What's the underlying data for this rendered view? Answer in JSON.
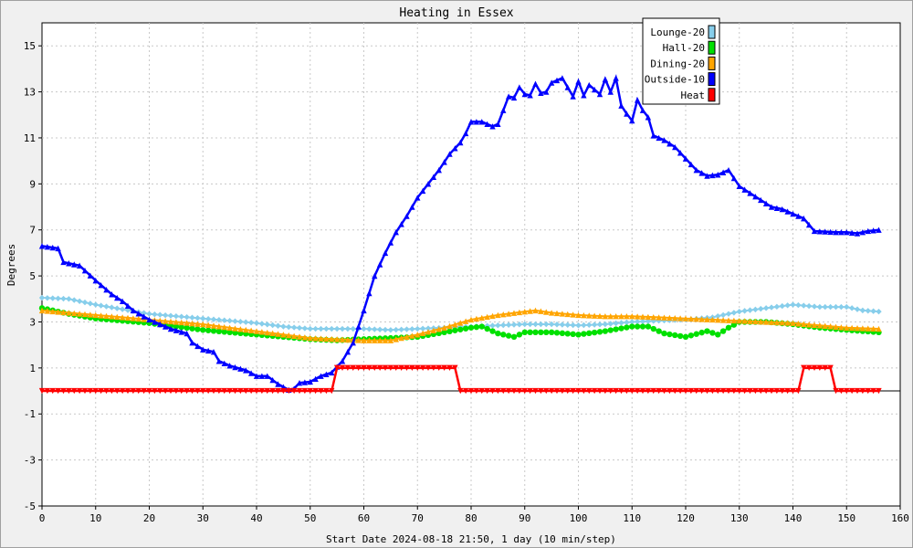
{
  "chart_data": {
    "type": "line",
    "title": "Heating in Essex",
    "xlabel": "Start Date 2024-08-18 21:50, 1 day (10 min/step)",
    "ylabel": "Degrees",
    "xlim": [
      0,
      160
    ],
    "ylim": [
      -5,
      16
    ],
    "x_ticks": [
      0,
      10,
      20,
      30,
      40,
      50,
      60,
      70,
      80,
      90,
      100,
      110,
      120,
      130,
      140,
      150,
      160
    ],
    "y_ticks": [
      -5,
      -3,
      -1,
      1,
      3,
      5,
      7,
      9,
      11,
      13,
      15
    ],
    "grid": true,
    "legend_position": "top-right",
    "series": [
      {
        "name": "Lounge-20",
        "color": "#87ceeb",
        "marker": "diamond",
        "points": [
          [
            0,
            4.05
          ],
          [
            5,
            4.0
          ],
          [
            10,
            3.75
          ],
          [
            15,
            3.55
          ],
          [
            20,
            3.35
          ],
          [
            25,
            3.25
          ],
          [
            30,
            3.15
          ],
          [
            35,
            3.05
          ],
          [
            40,
            2.95
          ],
          [
            45,
            2.8
          ],
          [
            50,
            2.7
          ],
          [
            55,
            2.7
          ],
          [
            60,
            2.7
          ],
          [
            65,
            2.65
          ],
          [
            70,
            2.7
          ],
          [
            75,
            2.75
          ],
          [
            80,
            2.8
          ],
          [
            85,
            2.85
          ],
          [
            90,
            2.9
          ],
          [
            95,
            2.9
          ],
          [
            100,
            2.85
          ],
          [
            105,
            2.9
          ],
          [
            110,
            3.0
          ],
          [
            115,
            3.05
          ],
          [
            120,
            3.1
          ],
          [
            125,
            3.2
          ],
          [
            130,
            3.45
          ],
          [
            135,
            3.6
          ],
          [
            140,
            3.75
          ],
          [
            145,
            3.65
          ],
          [
            150,
            3.65
          ],
          [
            153,
            3.5
          ],
          [
            156,
            3.45
          ]
        ]
      },
      {
        "name": "Hall-20",
        "color": "#00e000",
        "marker": "circle",
        "points": [
          [
            0,
            3.6
          ],
          [
            5,
            3.35
          ],
          [
            10,
            3.15
          ],
          [
            15,
            3.05
          ],
          [
            20,
            2.95
          ],
          [
            25,
            2.8
          ],
          [
            30,
            2.65
          ],
          [
            35,
            2.55
          ],
          [
            40,
            2.45
          ],
          [
            45,
            2.35
          ],
          [
            50,
            2.25
          ],
          [
            55,
            2.2
          ],
          [
            60,
            2.25
          ],
          [
            65,
            2.3
          ],
          [
            70,
            2.35
          ],
          [
            75,
            2.55
          ],
          [
            80,
            2.75
          ],
          [
            82,
            2.8
          ],
          [
            85,
            2.5
          ],
          [
            88,
            2.35
          ],
          [
            90,
            2.55
          ],
          [
            95,
            2.55
          ],
          [
            100,
            2.45
          ],
          [
            105,
            2.6
          ],
          [
            110,
            2.8
          ],
          [
            113,
            2.8
          ],
          [
            116,
            2.5
          ],
          [
            120,
            2.35
          ],
          [
            124,
            2.6
          ],
          [
            126,
            2.45
          ],
          [
            128,
            2.75
          ],
          [
            130,
            3.0
          ],
          [
            135,
            3.0
          ],
          [
            140,
            2.9
          ],
          [
            145,
            2.75
          ],
          [
            150,
            2.65
          ],
          [
            156,
            2.55
          ]
        ]
      },
      {
        "name": "Dining-20",
        "color": "#ffa500",
        "marker": "triangle-up",
        "points": [
          [
            0,
            3.5
          ],
          [
            5,
            3.4
          ],
          [
            10,
            3.3
          ],
          [
            15,
            3.2
          ],
          [
            20,
            3.1
          ],
          [
            25,
            3.0
          ],
          [
            30,
            2.9
          ],
          [
            35,
            2.75
          ],
          [
            40,
            2.6
          ],
          [
            45,
            2.45
          ],
          [
            50,
            2.3
          ],
          [
            55,
            2.25
          ],
          [
            60,
            2.2
          ],
          [
            65,
            2.2
          ],
          [
            70,
            2.45
          ],
          [
            75,
            2.75
          ],
          [
            80,
            3.1
          ],
          [
            85,
            3.3
          ],
          [
            90,
            3.45
          ],
          [
            92,
            3.5
          ],
          [
            95,
            3.4
          ],
          [
            100,
            3.3
          ],
          [
            105,
            3.25
          ],
          [
            110,
            3.25
          ],
          [
            115,
            3.2
          ],
          [
            120,
            3.15
          ],
          [
            125,
            3.1
          ],
          [
            130,
            3.05
          ],
          [
            135,
            3.0
          ],
          [
            140,
            2.95
          ],
          [
            145,
            2.85
          ],
          [
            150,
            2.75
          ],
          [
            156,
            2.7
          ]
        ]
      },
      {
        "name": "Outside-10",
        "color": "#0000ff",
        "marker": "triangle-up",
        "points": [
          [
            0,
            6.3
          ],
          [
            3,
            6.2
          ],
          [
            4,
            5.6
          ],
          [
            7,
            5.45
          ],
          [
            10,
            4.8
          ],
          [
            13,
            4.2
          ],
          [
            15,
            3.9
          ],
          [
            17,
            3.5
          ],
          [
            20,
            3.1
          ],
          [
            22,
            2.9
          ],
          [
            24,
            2.7
          ],
          [
            27,
            2.5
          ],
          [
            28,
            2.1
          ],
          [
            30,
            1.8
          ],
          [
            32,
            1.7
          ],
          [
            33,
            1.3
          ],
          [
            35,
            1.1
          ],
          [
            38,
            0.9
          ],
          [
            40,
            0.65
          ],
          [
            42,
            0.65
          ],
          [
            44,
            0.3
          ],
          [
            46,
            0.05
          ],
          [
            47,
            0.1
          ],
          [
            48,
            0.35
          ],
          [
            50,
            0.4
          ],
          [
            52,
            0.65
          ],
          [
            54,
            0.8
          ],
          [
            56,
            1.3
          ],
          [
            58,
            2.1
          ],
          [
            60,
            3.5
          ],
          [
            62,
            5.0
          ],
          [
            64,
            6.0
          ],
          [
            66,
            6.9
          ],
          [
            68,
            7.6
          ],
          [
            70,
            8.4
          ],
          [
            72,
            9.0
          ],
          [
            74,
            9.6
          ],
          [
            76,
            10.3
          ],
          [
            78,
            10.8
          ],
          [
            79,
            11.2
          ],
          [
            80,
            11.7
          ],
          [
            82,
            11.7
          ],
          [
            84,
            11.5
          ],
          [
            85,
            11.6
          ],
          [
            86,
            12.2
          ],
          [
            87,
            12.8
          ],
          [
            88,
            12.75
          ],
          [
            89,
            13.2
          ],
          [
            90,
            12.9
          ],
          [
            91,
            12.85
          ],
          [
            92,
            13.35
          ],
          [
            93,
            12.95
          ],
          [
            94,
            13.0
          ],
          [
            95,
            13.4
          ],
          [
            97,
            13.6
          ],
          [
            99,
            12.8
          ],
          [
            100,
            13.45
          ],
          [
            101,
            12.85
          ],
          [
            102,
            13.3
          ],
          [
            103,
            13.1
          ],
          [
            104,
            12.9
          ],
          [
            105,
            13.55
          ],
          [
            106,
            13.0
          ],
          [
            107,
            13.6
          ],
          [
            108,
            12.4
          ],
          [
            109,
            12.05
          ],
          [
            110,
            11.75
          ],
          [
            111,
            12.65
          ],
          [
            112,
            12.2
          ],
          [
            113,
            11.9
          ],
          [
            114,
            11.1
          ],
          [
            116,
            10.9
          ],
          [
            118,
            10.6
          ],
          [
            120,
            10.1
          ],
          [
            122,
            9.6
          ],
          [
            124,
            9.35
          ],
          [
            126,
            9.4
          ],
          [
            128,
            9.6
          ],
          [
            130,
            8.9
          ],
          [
            132,
            8.6
          ],
          [
            134,
            8.3
          ],
          [
            136,
            8.0
          ],
          [
            138,
            7.9
          ],
          [
            140,
            7.7
          ],
          [
            142,
            7.5
          ],
          [
            144,
            6.95
          ],
          [
            148,
            6.9
          ],
          [
            150,
            6.9
          ],
          [
            152,
            6.85
          ],
          [
            154,
            6.95
          ],
          [
            156,
            7.0
          ]
        ]
      },
      {
        "name": "Heat",
        "color": "#ff0000",
        "marker": "triangle-down",
        "points": [
          [
            0,
            0
          ],
          [
            54,
            0
          ],
          [
            55,
            1
          ],
          [
            77,
            1
          ],
          [
            78,
            0
          ],
          [
            141,
            0
          ],
          [
            142,
            1
          ],
          [
            147,
            1
          ],
          [
            148,
            0
          ],
          [
            156,
            0
          ]
        ]
      }
    ]
  }
}
